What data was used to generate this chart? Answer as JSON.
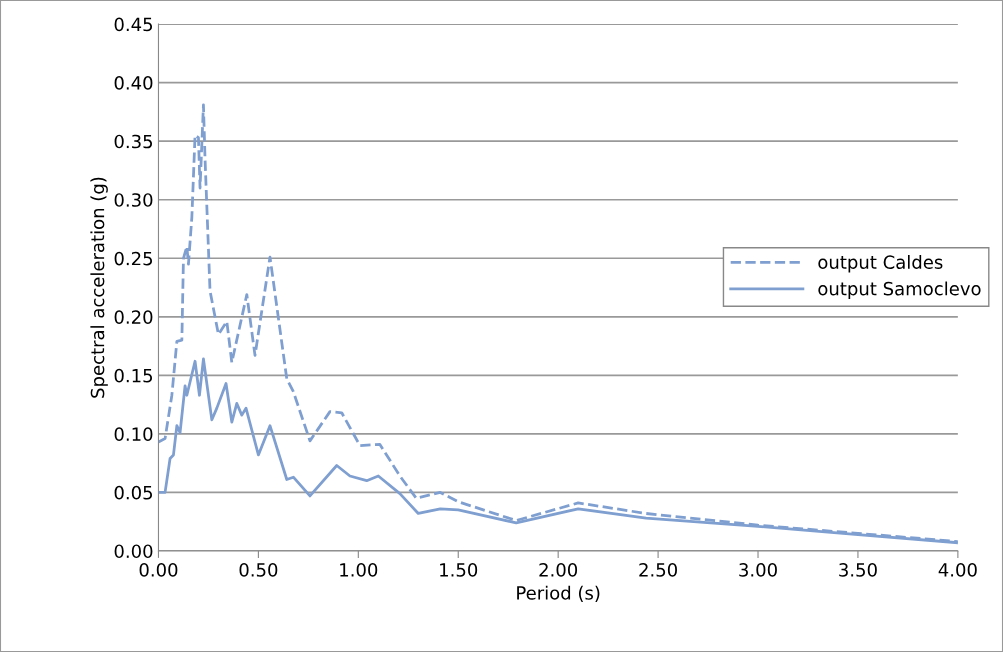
{
  "chart_data": {
    "type": "line",
    "xlabel": "Period (s)",
    "ylabel": "Spectral acceleration (g)",
    "xlim": [
      0,
      4
    ],
    "xticks": [
      {
        "value": 0,
        "label": "0.00"
      },
      {
        "value": 0.5,
        "label": "0.50"
      },
      {
        "value": 1,
        "label": "1.00"
      },
      {
        "value": 1.5,
        "label": "1.50"
      },
      {
        "value": 2,
        "label": "2.00"
      },
      {
        "value": 2.5,
        "label": "2.50"
      },
      {
        "value": 3,
        "label": "3.00"
      },
      {
        "value": 3.5,
        "label": "3.50"
      },
      {
        "value": 4,
        "label": "4.00"
      }
    ],
    "ylim": [
      0,
      0.45
    ],
    "yticks": [
      {
        "value": 0,
        "label": "0.00"
      },
      {
        "value": 0.05,
        "label": "0.05"
      },
      {
        "value": 0.1,
        "label": "0.10"
      },
      {
        "value": 0.15,
        "label": "0.15"
      },
      {
        "value": 0.2,
        "label": "0.20"
      },
      {
        "value": 0.25,
        "label": "0.25"
      },
      {
        "value": 0.3,
        "label": "0.30"
      },
      {
        "value": 0.35,
        "label": "0.35"
      },
      {
        "value": 0.4,
        "label": "0.40"
      },
      {
        "value": 0.45,
        "label": "0.45"
      }
    ],
    "grid": "y",
    "legend": "right",
    "marker": "none",
    "series": [
      {
        "name": "output Caldes",
        "color": "#7f9fd0",
        "line_style": "dashed",
        "x": [
          0,
          0.033,
          0.067,
          0.092,
          0.117,
          0.125,
          0.142,
          0.15,
          0.167,
          0.183,
          0.2,
          0.208,
          0.225,
          0.233,
          0.258,
          0.3,
          0.342,
          0.367,
          0.442,
          0.483,
          0.558,
          0.642,
          0.675,
          0.758,
          0.858,
          0.917,
          1.008,
          1.108,
          1.208,
          1.29,
          1.41,
          1.5,
          1.79,
          2.1,
          2.44,
          3.0,
          3.5,
          4.0
        ],
        "values": [
          0.093,
          0.096,
          0.133,
          0.179,
          0.18,
          0.25,
          0.26,
          0.245,
          0.285,
          0.355,
          0.353,
          0.31,
          0.381,
          0.335,
          0.222,
          0.185,
          0.196,
          0.161,
          0.219,
          0.167,
          0.251,
          0.147,
          0.136,
          0.094,
          0.119,
          0.118,
          0.09,
          0.091,
          0.064,
          0.045,
          0.05,
          0.042,
          0.026,
          0.041,
          0.032,
          0.022,
          0.015,
          0.008
        ]
      },
      {
        "name": "output Samoclevo",
        "color": "#7f9fd0",
        "line_style": "solid",
        "x": [
          0,
          0.033,
          0.058,
          0.075,
          0.092,
          0.108,
          0.133,
          0.142,
          0.183,
          0.205,
          0.225,
          0.267,
          0.292,
          0.338,
          0.367,
          0.392,
          0.417,
          0.438,
          0.5,
          0.558,
          0.642,
          0.675,
          0.758,
          0.892,
          0.958,
          1.042,
          1.1,
          1.208,
          1.3,
          1.41,
          1.5,
          1.79,
          2.1,
          2.44,
          3.0,
          3.5,
          4.0
        ],
        "values": [
          0.05,
          0.05,
          0.079,
          0.082,
          0.107,
          0.101,
          0.141,
          0.133,
          0.162,
          0.133,
          0.164,
          0.112,
          0.122,
          0.143,
          0.11,
          0.126,
          0.116,
          0.122,
          0.082,
          0.107,
          0.061,
          0.063,
          0.047,
          0.073,
          0.064,
          0.06,
          0.064,
          0.049,
          0.032,
          0.036,
          0.035,
          0.024,
          0.036,
          0.028,
          0.021,
          0.014,
          0.007
        ]
      }
    ]
  }
}
